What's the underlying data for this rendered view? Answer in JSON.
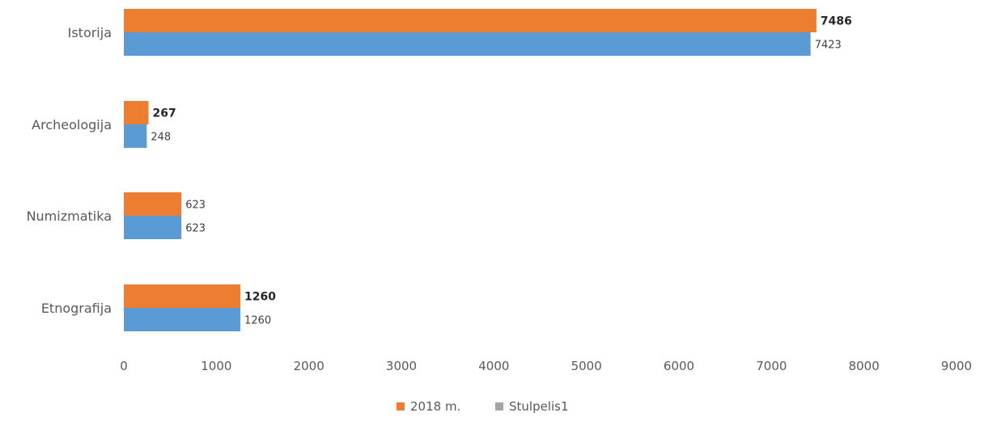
{
  "chart_data": {
    "type": "bar",
    "orientation": "horizontal",
    "categories": [
      "Istorija",
      "Archeologija",
      "Numizmatika",
      "Etnografija"
    ],
    "series": [
      {
        "name": "2018 m.",
        "color": "#ED7D31",
        "values": [
          7486,
          267,
          623,
          1260
        ],
        "labels": [
          "7486",
          "267",
          "623",
          "1260"
        ],
        "label_bold": [
          true,
          true,
          false,
          true
        ]
      },
      {
        "name": "Stulpelis1",
        "color": "#5B9BD5",
        "values": [
          7423,
          248,
          623,
          1260
        ],
        "labels": [
          "7423",
          "248",
          "623",
          "1260"
        ],
        "label_bold": [
          false,
          false,
          false,
          false
        ]
      }
    ],
    "xlim": [
      0,
      9000
    ],
    "xticks": [
      0,
      1000,
      2000,
      3000,
      4000,
      5000,
      6000,
      7000,
      8000,
      9000
    ],
    "title": "",
    "xlabel": "",
    "ylabel": "",
    "grid": false,
    "legend": {
      "position": "bottom",
      "entries": [
        {
          "name": "2018 m.",
          "color": "#ED7D31"
        },
        {
          "name": "Stulpelis1",
          "color": "#A5A5A5"
        }
      ]
    }
  }
}
